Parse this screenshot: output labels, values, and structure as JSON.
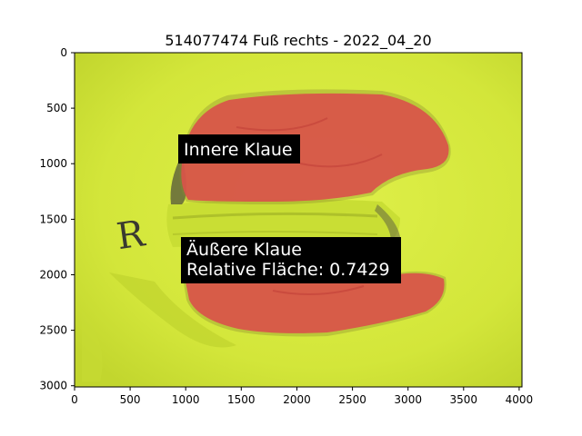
{
  "figure": {
    "title": "514077474 Fuß rechts - 2022_04_20"
  },
  "axes": {
    "x_ticks": [
      "0",
      "500",
      "1000",
      "1500",
      "2000",
      "2500",
      "3000",
      "3500",
      "4000"
    ],
    "y_ticks": [
      "0",
      "500",
      "1000",
      "1500",
      "2000",
      "2500",
      "3000"
    ]
  },
  "image": {
    "background_color": "#d6ea3c",
    "segment_color": "#d9534a",
    "marker_letter": "R"
  },
  "annotations": {
    "inner_claw": "Innere Klaue",
    "outer_claw_line1": "Äußere Klaue",
    "outer_claw_line2": "Relative Fläche: 0.7429"
  }
}
